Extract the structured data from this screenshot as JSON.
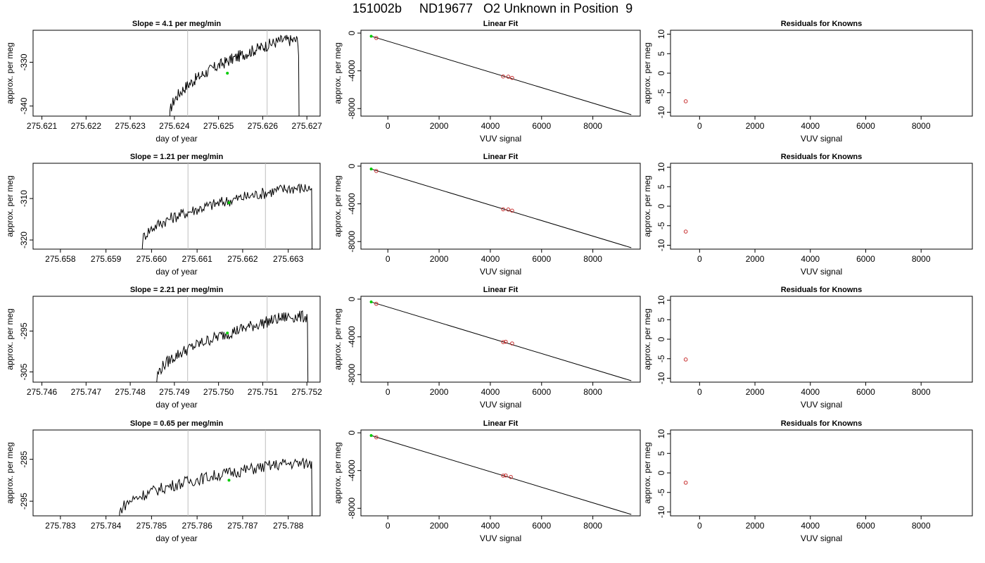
{
  "figure_title": "151002b     ND19677   O2 Unknown in Position  9",
  "colors": {
    "trace": "#000000",
    "vline": "#bebebe",
    "green_point": "#00cc00",
    "red_point": "#c83232",
    "fit_line": "#000000"
  },
  "chart_data": [
    {
      "type": "line",
      "row": 1,
      "col": 1,
      "title": "Slope =  4.1  per meg/min",
      "xlabel": "day of year",
      "ylabel": "approx. per meg",
      "xlim": [
        275.6208,
        275.6273
      ],
      "ylim": [
        -342.3,
        -322.7
      ],
      "xticks": [
        "275.621",
        "275.622",
        "275.623",
        "275.624",
        "275.625",
        "275.626",
        "275.627"
      ],
      "xtick_values": [
        275.621,
        275.622,
        275.623,
        275.624,
        275.625,
        275.626,
        275.627
      ],
      "yticks": [
        "-330",
        "-340"
      ],
      "ytick_values": [
        -330,
        -340
      ],
      "vlines": [
        275.6243,
        275.6261
      ],
      "green_point": {
        "x": 275.6252,
        "y": -332.5
      },
      "trace_start": 275.6239,
      "trace_end": 275.6268,
      "trace_y0": -342,
      "trace_y1": -325.0,
      "trace_end_y": -328.5
    },
    {
      "type": "line",
      "row": 2,
      "col": 1,
      "title": "Slope =  1.21  per meg/min",
      "xlabel": "day of year",
      "ylabel": "approx. per meg",
      "xlim": [
        275.6574,
        275.6637
      ],
      "ylim": [
        -322.2,
        -301.5
      ],
      "xticks": [
        "275.658",
        "275.659",
        "275.660",
        "275.661",
        "275.662",
        "275.663"
      ],
      "xtick_values": [
        275.658,
        275.659,
        275.66,
        275.661,
        275.662,
        275.663
      ],
      "yticks": [
        "-310",
        "-320"
      ],
      "ytick_values": [
        -310,
        -320
      ],
      "vlines": [
        275.6608,
        275.6625
      ],
      "green_point": {
        "x": 275.6617,
        "y": -311.0
      },
      "trace_start": 275.6598,
      "trace_end": 275.6635,
      "trace_y0": -320.5,
      "trace_y1": -307.5,
      "trace_end_y": -307.5
    },
    {
      "type": "line",
      "row": 3,
      "col": 1,
      "title": "Slope =  2.21  per meg/min",
      "xlabel": "day of year",
      "ylabel": "approx. per meg",
      "xlim": [
        275.7458,
        275.7523
      ],
      "ylim": [
        -307.5,
        -286.5
      ],
      "xticks": [
        "275.746",
        "275.747",
        "275.748",
        "275.749",
        "275.750",
        "275.751",
        "275.752"
      ],
      "xtick_values": [
        275.746,
        275.747,
        275.748,
        275.749,
        275.75,
        275.751,
        275.752
      ],
      "yticks": [
        "-295",
        "-305"
      ],
      "ytick_values": [
        -295,
        -305
      ],
      "vlines": [
        275.7493,
        275.7511
      ],
      "green_point": {
        "x": 275.7502,
        "y": -295.5
      },
      "trace_start": 275.7486,
      "trace_end": 275.752,
      "trace_y0": -307,
      "trace_y1": -291.5,
      "trace_end_y": -293.0
    },
    {
      "type": "line",
      "row": 4,
      "col": 1,
      "title": "Slope =  0.65  per meg/min",
      "xlabel": "day of year",
      "ylabel": "approx. per meg",
      "xlim": [
        275.7824,
        275.7887
      ],
      "ylim": [
        -298.5,
        -278.0
      ],
      "xticks": [
        "275.783",
        "275.784",
        "275.785",
        "275.786",
        "275.787",
        "275.788"
      ],
      "xtick_values": [
        275.783,
        275.784,
        275.785,
        275.786,
        275.787,
        275.788
      ],
      "yticks": [
        "-285",
        "-295"
      ],
      "ytick_values": [
        -285,
        -295
      ],
      "vlines": [
        275.7858,
        275.7875
      ],
      "green_point": {
        "x": 275.7867,
        "y": -290.0
      },
      "trace_start": 275.7843,
      "trace_end": 275.7885,
      "trace_y0": -298,
      "trace_y1": -286.0,
      "trace_end_y": -285.5
    },
    {
      "type": "scatter",
      "row": 1,
      "col": 2,
      "title": "Linear Fit",
      "xlabel": "VUV signal",
      "ylabel": "approx. per meg",
      "xlim": [
        -1050,
        9850
      ],
      "ylim": [
        -8800,
        300
      ],
      "xticks": [
        "0",
        "2000",
        "4000",
        "6000",
        "8000"
      ],
      "xtick_values": [
        0,
        2000,
        4000,
        6000,
        8000
      ],
      "yticks": [
        "0",
        "-4000",
        "-8000"
      ],
      "ytick_values": [
        0,
        -4000,
        -8000
      ],
      "green_points": [
        [
          -650,
          -330
        ]
      ],
      "red_points": [
        [
          -450,
          -520
        ],
        [
          4500,
          -4600
        ],
        [
          4700,
          -4620
        ],
        [
          4850,
          -4750
        ]
      ],
      "fit_line": [
        [
          -650,
          -330
        ],
        [
          9500,
          -8650
        ]
      ]
    },
    {
      "type": "scatter",
      "row": 2,
      "col": 2,
      "title": "Linear Fit",
      "xlabel": "VUV signal",
      "ylabel": "approx. per meg",
      "xlim": [
        -1050,
        9850
      ],
      "ylim": [
        -8800,
        300
      ],
      "xticks": [
        "0",
        "2000",
        "4000",
        "6000",
        "8000"
      ],
      "xtick_values": [
        0,
        2000,
        4000,
        6000,
        8000
      ],
      "yticks": [
        "0",
        "-4000",
        "-8000"
      ],
      "ytick_values": [
        0,
        -4000,
        -8000
      ],
      "green_points": [
        [
          -650,
          -310
        ]
      ],
      "red_points": [
        [
          -450,
          -520
        ],
        [
          4500,
          -4580
        ],
        [
          4700,
          -4600
        ],
        [
          4850,
          -4720
        ]
      ],
      "fit_line": [
        [
          -650,
          -310
        ],
        [
          9500,
          -8650
        ]
      ]
    },
    {
      "type": "scatter",
      "row": 3,
      "col": 2,
      "title": "Linear Fit",
      "xlabel": "VUV signal",
      "ylabel": "approx. per meg",
      "xlim": [
        -1050,
        9850
      ],
      "ylim": [
        -8800,
        300
      ],
      "xticks": [
        "0",
        "2000",
        "4000",
        "6000",
        "8000"
      ],
      "xtick_values": [
        0,
        2000,
        4000,
        6000,
        8000
      ],
      "yticks": [
        "0",
        "-4000",
        "-8000"
      ],
      "ytick_values": [
        0,
        -4000,
        -8000
      ],
      "green_points": [
        [
          -650,
          -300
        ]
      ],
      "red_points": [
        [
          -450,
          -500
        ],
        [
          4500,
          -4560
        ],
        [
          4600,
          -4520
        ],
        [
          4850,
          -4700
        ]
      ],
      "fit_line": [
        [
          -650,
          -300
        ],
        [
          9500,
          -8650
        ]
      ]
    },
    {
      "type": "scatter",
      "row": 4,
      "col": 2,
      "title": "Linear Fit",
      "xlabel": "VUV signal",
      "ylabel": "approx. per meg",
      "xlim": [
        -1050,
        9850
      ],
      "ylim": [
        -8800,
        300
      ],
      "xticks": [
        "0",
        "2000",
        "4000",
        "6000",
        "8000"
      ],
      "xtick_values": [
        0,
        2000,
        4000,
        6000,
        8000
      ],
      "yticks": [
        "0",
        "-4000",
        "-8000"
      ],
      "ytick_values": [
        0,
        -4000,
        -8000
      ],
      "green_points": [
        [
          -650,
          -290
        ]
      ],
      "red_points": [
        [
          -450,
          -480
        ],
        [
          4500,
          -4540
        ],
        [
          4600,
          -4520
        ],
        [
          4800,
          -4680
        ]
      ],
      "fit_line": [
        [
          -650,
          -290
        ],
        [
          9500,
          -8650
        ]
      ]
    },
    {
      "type": "scatter",
      "row": 1,
      "col": 3,
      "title": "Residuals for Knowns",
      "xlabel": "VUV signal",
      "ylabel": "approx. per meg",
      "xlim": [
        -1050,
        9850
      ],
      "ylim": [
        -11,
        11
      ],
      "xticks": [
        "0",
        "2000",
        "4000",
        "6000",
        "8000"
      ],
      "xtick_values": [
        0,
        2000,
        4000,
        6000,
        8000
      ],
      "yticks": [
        "10",
        "5",
        "0",
        "-5",
        "-10"
      ],
      "ytick_values": [
        10,
        5,
        0,
        -5,
        -10
      ],
      "red_points": [
        [
          -500,
          -7.2
        ]
      ]
    },
    {
      "type": "scatter",
      "row": 2,
      "col": 3,
      "title": "Residuals for Knowns",
      "xlabel": "VUV signal",
      "ylabel": "approx. per meg",
      "xlim": [
        -1050,
        9850
      ],
      "ylim": [
        -11,
        11
      ],
      "xticks": [
        "0",
        "2000",
        "4000",
        "6000",
        "8000"
      ],
      "xtick_values": [
        0,
        2000,
        4000,
        6000,
        8000
      ],
      "yticks": [
        "10",
        "5",
        "0",
        "-5",
        "-10"
      ],
      "ytick_values": [
        10,
        5,
        0,
        -5,
        -10
      ],
      "red_points": [
        [
          -500,
          -6.5
        ]
      ]
    },
    {
      "type": "scatter",
      "row": 3,
      "col": 3,
      "title": "Residuals for Knowns",
      "xlabel": "VUV signal",
      "ylabel": "approx. per meg",
      "xlim": [
        -1050,
        9850
      ],
      "ylim": [
        -11,
        11
      ],
      "xticks": [
        "0",
        "2000",
        "4000",
        "6000",
        "8000"
      ],
      "xtick_values": [
        0,
        2000,
        4000,
        6000,
        8000
      ],
      "yticks": [
        "10",
        "5",
        "0",
        "-5",
        "-10"
      ],
      "ytick_values": [
        10,
        5,
        0,
        -5,
        -10
      ],
      "red_points": [
        [
          -500,
          -5.2
        ]
      ]
    },
    {
      "type": "scatter",
      "row": 4,
      "col": 3,
      "title": "Residuals for Knowns",
      "xlabel": "VUV signal",
      "ylabel": "approx. per meg",
      "xlim": [
        -1050,
        9850
      ],
      "ylim": [
        -11,
        11
      ],
      "xticks": [
        "0",
        "2000",
        "4000",
        "6000",
        "8000"
      ],
      "xtick_values": [
        0,
        2000,
        4000,
        6000,
        8000
      ],
      "yticks": [
        "10",
        "5",
        "0",
        "-5",
        "-10"
      ],
      "ytick_values": [
        10,
        5,
        0,
        -5,
        -10
      ],
      "red_points": [
        [
          -500,
          -2.5
        ]
      ]
    }
  ]
}
